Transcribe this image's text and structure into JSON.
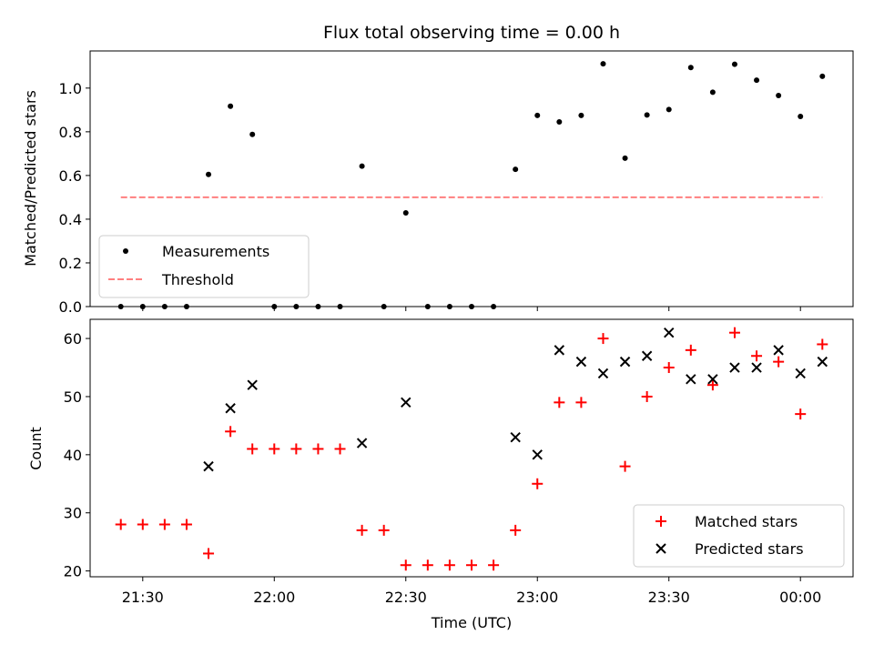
{
  "chart_data": [
    {
      "type": "scatter",
      "title": "Flux total observing time = 0.00 h",
      "xlabel": "",
      "ylabel": "Matched/Predicted stars",
      "ylim": [
        0,
        1.17
      ],
      "yticks": [
        "0.0",
        "0.2",
        "0.4",
        "0.6",
        "0.8",
        "1.0"
      ],
      "yticks_values": [
        0,
        0.2,
        0.4,
        0.6,
        0.8,
        1.0
      ],
      "x_range_minutes": [
        1278,
        1452
      ],
      "legend": {
        "position": "lower-left",
        "entries": [
          "Measurements",
          "Threshold"
        ]
      },
      "series": [
        {
          "name": "Measurements",
          "marker": "dot",
          "color": "#000000",
          "points": [
            {
              "t": "21:25",
              "y": 0
            },
            {
              "t": "21:30",
              "y": 0
            },
            {
              "t": "21:35",
              "y": 0
            },
            {
              "t": "21:40",
              "y": 0
            },
            {
              "t": "21:45",
              "y": 0.605
            },
            {
              "t": "21:50",
              "y": 0.917
            },
            {
              "t": "21:55",
              "y": 0.788
            },
            {
              "t": "22:00",
              "y": 0
            },
            {
              "t": "22:05",
              "y": 0
            },
            {
              "t": "22:10",
              "y": 0
            },
            {
              "t": "22:15",
              "y": 0
            },
            {
              "t": "22:20",
              "y": 0.643
            },
            {
              "t": "22:25",
              "y": 0
            },
            {
              "t": "22:30",
              "y": 0.429
            },
            {
              "t": "22:35",
              "y": 0
            },
            {
              "t": "22:40",
              "y": 0
            },
            {
              "t": "22:45",
              "y": 0
            },
            {
              "t": "22:50",
              "y": 0
            },
            {
              "t": "22:55",
              "y": 0.628
            },
            {
              "t": "23:00",
              "y": 0.875
            },
            {
              "t": "23:05",
              "y": 0.845
            },
            {
              "t": "23:10",
              "y": 0.875
            },
            {
              "t": "23:15",
              "y": 1.111
            },
            {
              "t": "23:20",
              "y": 0.679
            },
            {
              "t": "23:25",
              "y": 0.877
            },
            {
              "t": "23:30",
              "y": 0.902
            },
            {
              "t": "23:35",
              "y": 1.094
            },
            {
              "t": "23:40",
              "y": 0.981
            },
            {
              "t": "23:45",
              "y": 1.109
            },
            {
              "t": "23:50",
              "y": 1.036
            },
            {
              "t": "23:55",
              "y": 0.966
            },
            {
              "t": "00:00",
              "y": 0.87
            },
            {
              "t": "00:05",
              "y": 1.054
            }
          ]
        },
        {
          "name": "Threshold",
          "marker": "dashed-line",
          "color": "#ff7f7f",
          "y": 0.5,
          "x_start": "21:25",
          "x_end": "00:05"
        }
      ]
    },
    {
      "type": "scatter",
      "title": "",
      "xlabel": "Time (UTC)",
      "ylabel": "Count",
      "ylim": [
        19,
        63.3
      ],
      "yticks": [
        "20",
        "30",
        "40",
        "50",
        "60"
      ],
      "yticks_values": [
        20,
        30,
        40,
        50,
        60
      ],
      "xticks": [
        "21:30",
        "22:00",
        "22:30",
        "23:00",
        "23:30",
        "00:00"
      ],
      "xticks_minutes": [
        1290,
        1320,
        1350,
        1380,
        1410,
        1440
      ],
      "x_range_minutes": [
        1278,
        1452
      ],
      "legend": {
        "position": "lower-right",
        "entries": [
          "Matched stars",
          "Predicted stars"
        ]
      },
      "series": [
        {
          "name": "Matched stars",
          "marker": "plus",
          "color": "#ff0000",
          "points": [
            {
              "t": "21:25",
              "y": 28
            },
            {
              "t": "21:30",
              "y": 28
            },
            {
              "t": "21:35",
              "y": 28
            },
            {
              "t": "21:40",
              "y": 28
            },
            {
              "t": "21:45",
              "y": 23
            },
            {
              "t": "21:50",
              "y": 44
            },
            {
              "t": "21:55",
              "y": 41
            },
            {
              "t": "22:00",
              "y": 41
            },
            {
              "t": "22:05",
              "y": 41
            },
            {
              "t": "22:10",
              "y": 41
            },
            {
              "t": "22:15",
              "y": 41
            },
            {
              "t": "22:20",
              "y": 27
            },
            {
              "t": "22:25",
              "y": 27
            },
            {
              "t": "22:30",
              "y": 21
            },
            {
              "t": "22:35",
              "y": 21
            },
            {
              "t": "22:40",
              "y": 21
            },
            {
              "t": "22:45",
              "y": 21
            },
            {
              "t": "22:50",
              "y": 21
            },
            {
              "t": "22:55",
              "y": 27
            },
            {
              "t": "23:00",
              "y": 35
            },
            {
              "t": "23:05",
              "y": 49
            },
            {
              "t": "23:10",
              "y": 49
            },
            {
              "t": "23:15",
              "y": 60
            },
            {
              "t": "23:20",
              "y": 38
            },
            {
              "t": "23:25",
              "y": 50
            },
            {
              "t": "23:30",
              "y": 55
            },
            {
              "t": "23:35",
              "y": 58
            },
            {
              "t": "23:40",
              "y": 52
            },
            {
              "t": "23:45",
              "y": 61
            },
            {
              "t": "23:50",
              "y": 57
            },
            {
              "t": "23:55",
              "y": 56
            },
            {
              "t": "00:00",
              "y": 47
            },
            {
              "t": "00:05",
              "y": 59
            }
          ]
        },
        {
          "name": "Predicted stars",
          "marker": "x",
          "color": "#000000",
          "points": [
            {
              "t": "21:45",
              "y": 38
            },
            {
              "t": "21:50",
              "y": 48
            },
            {
              "t": "21:55",
              "y": 52
            },
            {
              "t": "22:20",
              "y": 42
            },
            {
              "t": "22:30",
              "y": 49
            },
            {
              "t": "22:55",
              "y": 43
            },
            {
              "t": "23:00",
              "y": 40
            },
            {
              "t": "23:05",
              "y": 58
            },
            {
              "t": "23:10",
              "y": 56
            },
            {
              "t": "23:15",
              "y": 54
            },
            {
              "t": "23:20",
              "y": 56
            },
            {
              "t": "23:25",
              "y": 57
            },
            {
              "t": "23:30",
              "y": 61
            },
            {
              "t": "23:35",
              "y": 53
            },
            {
              "t": "23:40",
              "y": 53
            },
            {
              "t": "23:45",
              "y": 55
            },
            {
              "t": "23:50",
              "y": 55
            },
            {
              "t": "23:55",
              "y": 58
            },
            {
              "t": "00:00",
              "y": 54
            },
            {
              "t": "00:05",
              "y": 56
            }
          ]
        }
      ]
    }
  ]
}
